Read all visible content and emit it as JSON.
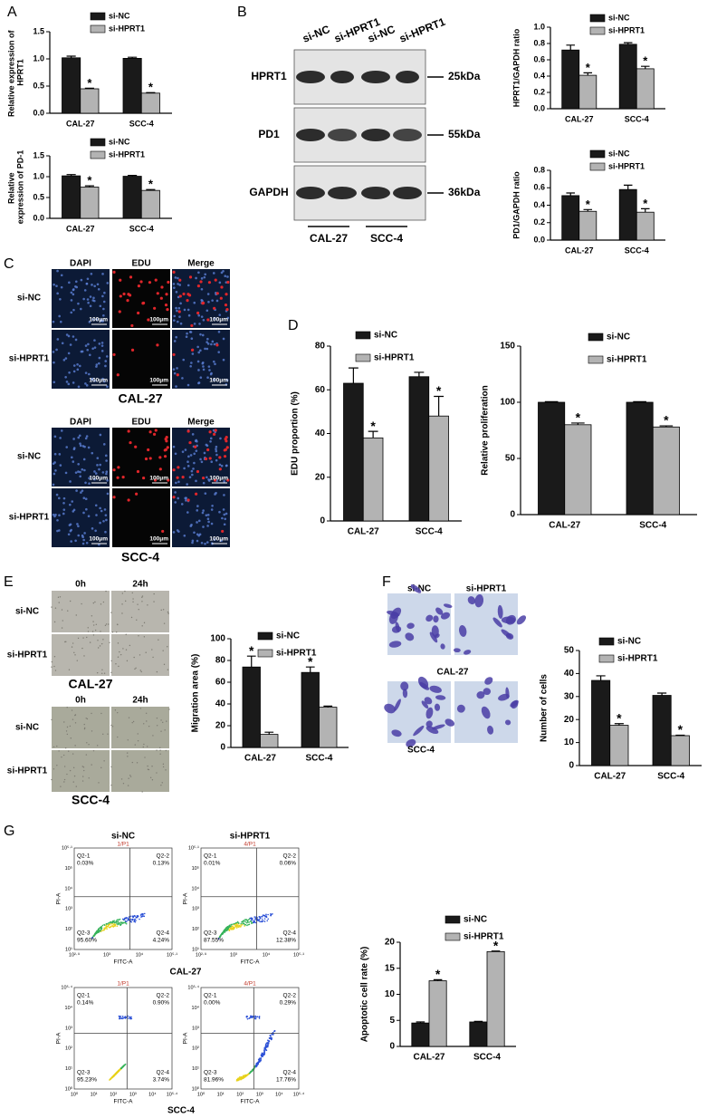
{
  "panel_labels": [
    "A",
    "B",
    "C",
    "D",
    "E",
    "F",
    "G"
  ],
  "blot": {
    "lanes": [
      "si-NC",
      "si-HPRT1",
      "si-NC",
      "si-HPRT1"
    ],
    "proteins": [
      "HPRT1",
      "PD1",
      "GAPDH"
    ],
    "sizes": [
      "25kDa",
      "55kDa",
      "36kDa"
    ],
    "groups": [
      "CAL-27",
      "SCC-4"
    ]
  },
  "edu": {
    "columns": [
      "DAPI",
      "EDU",
      "Merge"
    ],
    "rows": [
      "si-NC",
      "si-HPRT1"
    ],
    "scale": "100μm",
    "groups": [
      "CAL-27",
      "SCC-4"
    ]
  },
  "wound": {
    "columns": [
      "0h",
      "24h"
    ],
    "rows": [
      "si-NC",
      "si-HPRT1"
    ],
    "groups": [
      "CAL-27",
      "SCC-4"
    ]
  },
  "transwell": {
    "columns": [
      "si-NC",
      "si-HPRT1"
    ],
    "groups": [
      "CAL-27",
      "SCC-4"
    ]
  },
  "flow": {
    "columns": [
      "si-NC",
      "si-HPRT1"
    ],
    "groups": [
      "CAL-27",
      "SCC-4"
    ],
    "x_label": "FITC-A",
    "y_label": "PI-A",
    "quadrant_names": [
      "Q2-1",
      "Q2-2",
      "Q2-3",
      "Q2-4"
    ],
    "plots": [
      {
        "gate": "1/P1",
        "percents": [
          "0.03%",
          "0.13%",
          "95.60%",
          "4.24%"
        ],
        "xticks": [
          "10²·⁹",
          "10³",
          "10⁴",
          "10⁵·¹"
        ],
        "yticks": [
          "10¹",
          "10²",
          "10³",
          "10⁴",
          "10⁵",
          "10⁵·¹"
        ]
      },
      {
        "gate": "4/P1",
        "percents": [
          "0.01%",
          "0.06%",
          "87.55%",
          "12.38%"
        ],
        "xticks": [
          "10²·⁹",
          "10³",
          "10⁴",
          "10⁵·¹"
        ],
        "yticks": [
          "10¹",
          "10²",
          "10³",
          "10⁴",
          "10⁵",
          "10⁵·¹"
        ]
      },
      {
        "gate": "1/P1",
        "percents": [
          "0.14%",
          "0.90%",
          "95.23%",
          "3.74%"
        ],
        "xticks": [
          "10⁰",
          "10¹",
          "10²",
          "10³",
          "10⁴",
          "10⁵·⁴"
        ],
        "yticks": [
          "10⁰",
          "10¹",
          "10²",
          "10³",
          "10⁴",
          "10⁵·⁴"
        ]
      },
      {
        "gate": "4/P1",
        "percents": [
          "0.00%",
          "0.29%",
          "81.96%",
          "17.76%"
        ],
        "xticks": [
          "10⁰",
          "10¹",
          "10²",
          "10³",
          "10⁴",
          "10⁵·⁴"
        ],
        "yticks": [
          "10⁰",
          "10¹",
          "10²",
          "10³",
          "10⁴",
          "10⁵·⁴"
        ]
      }
    ]
  },
  "chart_data": [
    {
      "type": "bar",
      "ylabel": "Relative expression of HPRT1",
      "categories": [
        "CAL-27",
        "SCC-4"
      ],
      "series": [
        {
          "name": "si-NC",
          "color": "#1a1a1a",
          "values": [
            1.02,
            1.01
          ],
          "errors": [
            0.03,
            0.02
          ]
        },
        {
          "name": "si-HPRT1",
          "color": "#b3b3b3",
          "values": [
            0.45,
            0.37
          ],
          "errors": [
            0.01,
            0.01
          ],
          "significance": [
            "*",
            "*"
          ]
        }
      ],
      "ylim": [
        0,
        1.5
      ],
      "yticks": [
        {
          "value": 0,
          "label": "0.0"
        },
        0.5,
        {
          "value": 1,
          "label": "1.0"
        },
        1.5
      ]
    },
    {
      "type": "bar",
      "ylabel": "Relative expression of PD-1",
      "categories": [
        "CAL-27",
        "SCC-4"
      ],
      "series": [
        {
          "name": "si-NC",
          "color": "#1a1a1a",
          "values": [
            1.02,
            1.01
          ],
          "errors": [
            0.03,
            0.02
          ]
        },
        {
          "name": "si-HPRT1",
          "color": "#b3b3b3",
          "values": [
            0.75,
            0.67
          ],
          "errors": [
            0.03,
            0.02
          ],
          "significance": [
            "*",
            "*"
          ]
        }
      ],
      "ylim": [
        0,
        1.5
      ],
      "yticks": [
        {
          "value": 0,
          "label": "0.0"
        },
        0.5,
        {
          "value": 1,
          "label": "1.0"
        },
        1.5
      ]
    },
    {
      "type": "bar",
      "ylabel": "HPRT1/GAPDH ratio",
      "categories": [
        "CAL-27",
        "SCC-4"
      ],
      "series": [
        {
          "name": "si-NC",
          "color": "#1a1a1a",
          "values": [
            0.72,
            0.79
          ],
          "errors": [
            0.06,
            0.02
          ]
        },
        {
          "name": "si-HPRT1",
          "color": "#b3b3b3",
          "values": [
            0.41,
            0.49
          ],
          "errors": [
            0.03,
            0.03
          ],
          "significance": [
            "*",
            "*"
          ]
        }
      ],
      "ylim": [
        0,
        1
      ],
      "yticks": [
        {
          "value": 0,
          "label": "0.0"
        },
        0.2,
        0.4,
        0.6,
        0.8,
        {
          "value": 1,
          "label": "1.0"
        }
      ]
    },
    {
      "type": "bar",
      "ylabel": "PD1/GAPDH ratio",
      "categories": [
        "CAL-27",
        "SCC-4"
      ],
      "series": [
        {
          "name": "si-NC",
          "color": "#1a1a1a",
          "values": [
            0.51,
            0.58
          ],
          "errors": [
            0.03,
            0.05
          ]
        },
        {
          "name": "si-HPRT1",
          "color": "#b3b3b3",
          "values": [
            0.33,
            0.32
          ],
          "errors": [
            0.02,
            0.04
          ],
          "significance": [
            "*",
            "*"
          ]
        }
      ],
      "ylim": [
        0,
        0.8
      ],
      "yticks": [
        {
          "value": 0,
          "label": "0.0"
        },
        0.2,
        0.4,
        0.6,
        0.8
      ]
    },
    {
      "type": "bar",
      "ylabel": "EDU proportion (%)",
      "categories": [
        "CAL-27",
        "SCC-4"
      ],
      "series": [
        {
          "name": "si-NC",
          "color": "#1a1a1a",
          "values": [
            63,
            66
          ],
          "errors": [
            7,
            2
          ]
        },
        {
          "name": "si-HPRT1",
          "color": "#b3b3b3",
          "values": [
            38,
            48
          ],
          "errors": [
            3,
            9
          ],
          "significance": [
            "*",
            "*"
          ]
        }
      ],
      "ylim": [
        0,
        80
      ],
      "yticks": [
        0,
        20,
        40,
        60,
        80
      ]
    },
    {
      "type": "bar",
      "ylabel": "Relative proliferation",
      "categories": [
        "CAL-27",
        "SCC-4"
      ],
      "series": [
        {
          "name": "si-NC",
          "color": "#1a1a1a",
          "values": [
            100,
            100
          ],
          "errors": [
            0.5,
            0.5
          ]
        },
        {
          "name": "si-HPRT1",
          "color": "#b3b3b3",
          "values": [
            80,
            78
          ],
          "errors": [
            1.5,
            1
          ],
          "significance": [
            "*",
            "*"
          ]
        }
      ],
      "ylim": [
        0,
        150
      ],
      "yticks": [
        0,
        50,
        100,
        150
      ]
    },
    {
      "type": "bar",
      "ylabel": "Migration area (%)",
      "categories": [
        "CAL-27",
        "SCC-4"
      ],
      "series": [
        {
          "name": "si-NC",
          "color": "#1a1a1a",
          "values": [
            74,
            69
          ],
          "errors": [
            10,
            5
          ],
          "significance": [
            "*",
            "*"
          ]
        },
        {
          "name": "si-HPRT1",
          "color": "#b3b3b3",
          "values": [
            12,
            37
          ],
          "errors": [
            2,
            1
          ]
        }
      ],
      "ylim": [
        0,
        100
      ],
      "yticks": [
        0,
        20,
        40,
        60,
        80,
        100
      ]
    },
    {
      "type": "bar",
      "ylabel": "Number of cells",
      "categories": [
        "CAL-27",
        "SCC-4"
      ],
      "series": [
        {
          "name": "si-NC",
          "color": "#1a1a1a",
          "values": [
            37,
            30.5
          ],
          "errors": [
            2,
            1
          ]
        },
        {
          "name": "si-HPRT1",
          "color": "#b3b3b3",
          "values": [
            17.5,
            13
          ],
          "errors": [
            0.7,
            0.2
          ],
          "significance": [
            "*",
            "*"
          ]
        }
      ],
      "ylim": [
        0,
        50
      ],
      "yticks": [
        0,
        10,
        20,
        30,
        40,
        50
      ]
    },
    {
      "type": "bar",
      "ylabel": "Apoptotic cell rate (%)",
      "categories": [
        "CAL-27",
        "SCC-4"
      ],
      "series": [
        {
          "name": "si-NC",
          "color": "#1a1a1a",
          "values": [
            4.5,
            4.7
          ],
          "errors": [
            0.2,
            0.1
          ]
        },
        {
          "name": "si-HPRT1",
          "color": "#b3b3b3",
          "values": [
            12.6,
            18.2
          ],
          "errors": [
            0.2,
            0.1
          ],
          "significance": [
            "*",
            "*"
          ]
        }
      ],
      "ylim": [
        0,
        20
      ],
      "yticks": [
        0,
        5,
        10,
        15,
        20
      ]
    }
  ]
}
